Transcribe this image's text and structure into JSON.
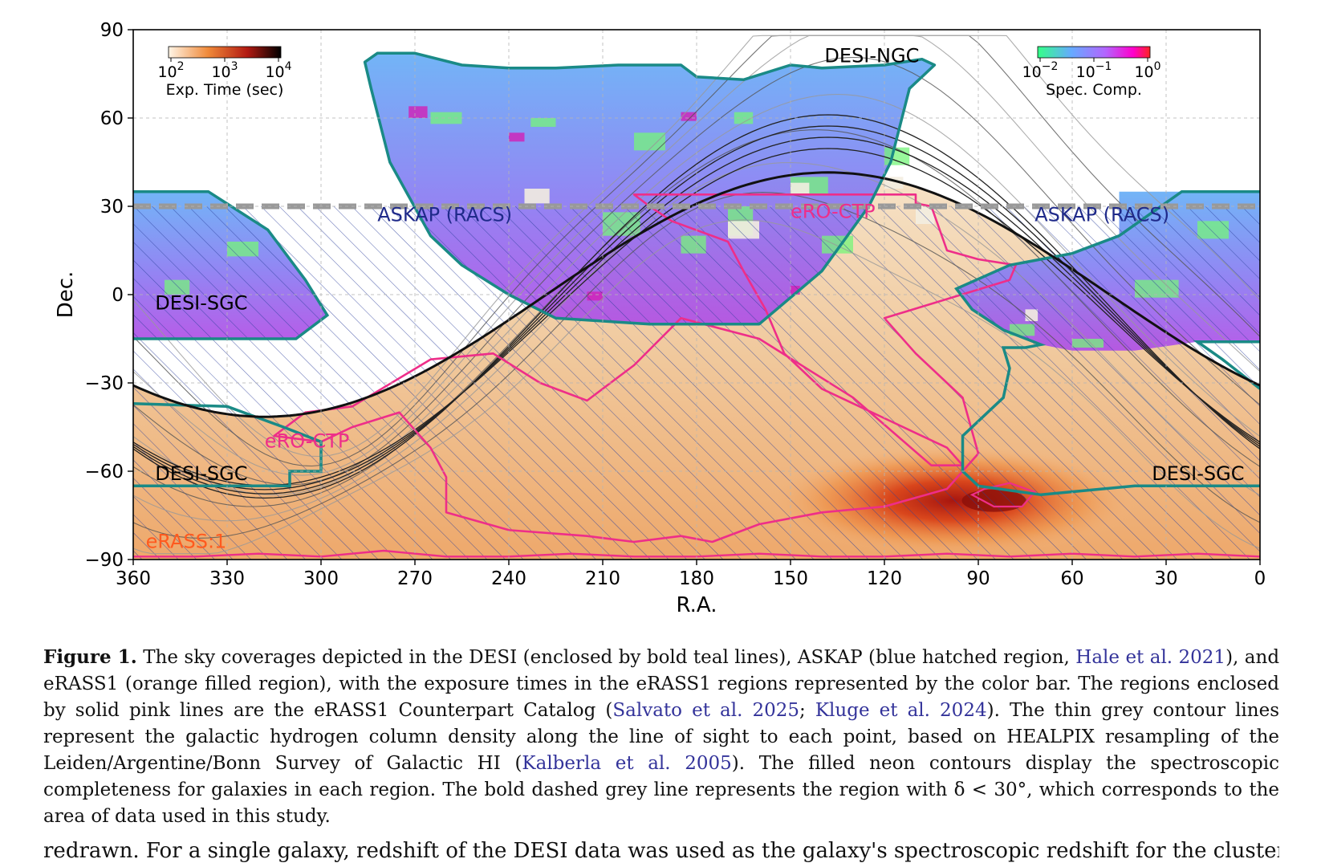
{
  "figure": {
    "chart_data": {
      "type": "sky-map",
      "xlabel": "R.A.",
      "ylabel": "Dec.",
      "xlim": [
        360,
        0
      ],
      "ylim": [
        -90,
        90
      ],
      "xticks": [
        "360",
        "330",
        "300",
        "270",
        "240",
        "210",
        "180",
        "150",
        "120",
        "90",
        "60",
        "30",
        "0"
      ],
      "yticks": [
        "90",
        "60",
        "30",
        "0",
        "−30",
        "−60",
        "−90"
      ],
      "region_labels": {
        "desi_ngc": "DESI-NGC",
        "desi_sgc": "DESI-SGC",
        "askap": "ASKAP (RACS)",
        "ero_ctp": "eRO-CTP",
        "erass": "eRASS:1"
      },
      "cut_dec": 30,
      "colorbar_exp": {
        "label": "Exp. Time (sec)",
        "ticks": [
          "10",
          "10",
          "10"
        ],
        "exps": [
          "2",
          "3",
          "4"
        ],
        "colors": [
          "#fff5e6",
          "#f08a3a",
          "#b21a12",
          "#000000"
        ]
      },
      "colorbar_comp": {
        "label": "Spec. Comp.",
        "ticks": [
          "10",
          "10",
          "10"
        ],
        "exps": [
          "−2",
          "−1",
          "0"
        ],
        "colors": [
          "#33ff88",
          "#66aaff",
          "#b266ff",
          "#ff00cc",
          "#ff2222"
        ]
      },
      "colors": {
        "desi": "#1a8a86",
        "ero": "#ee2e89",
        "askap": "#2b3f9c",
        "askap_label": "#1f2a8a",
        "erass_label": "#ff5a1f",
        "cut": "#999999"
      },
      "grid": true
    }
  },
  "caption": {
    "label": "Figure 1.",
    "t1": "The sky coverages depicted in the DESI (enclosed by bold teal lines), ASKAP (blue hatched region,",
    "c1": "Hale et al. 2021",
    "t2": "), and eRASS1 (orange filled region), with the exposure times in the eRASS1 regions represented by the color bar. The regions enclosed by solid pink lines are the eRASS1 Counterpart Catalog (",
    "c2": "Salvato et al. 2025",
    "t3": "; ",
    "c3": "Kluge et al. 2024",
    "t4": "). The thin grey contour lines represent the galactic hydrogen column density along the line of sight to each point, based on HEALPIX resampling of the Leiden/Argentine/Bonn Survey of Galactic HI (",
    "c4": "Kalberla et al. 2005",
    "t5": "). The filled neon contours display the spectroscopic completeness for galaxies in each region. The bold dashed grey line represents the region with δ < 30°, which corresponds to the area of data used in this study."
  },
  "next_text": "redrawn. For a single galaxy, redshift of the DESI data was used as the galaxy's spectroscopic redshift for the clustering analysis"
}
